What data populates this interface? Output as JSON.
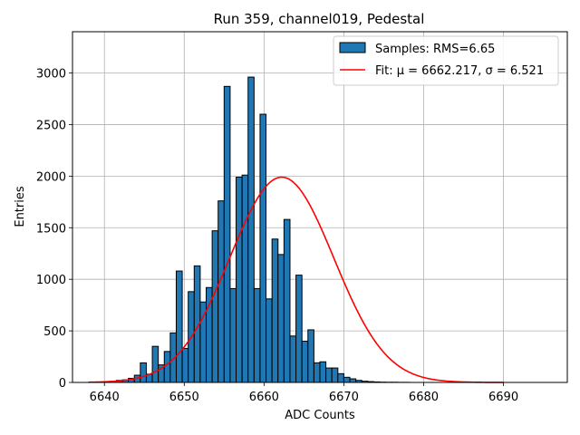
{
  "chart_data": {
    "type": "bar",
    "title": "Run 359, channel019, Pedestal",
    "xlabel": "ADC Counts",
    "ylabel": "Entries",
    "xlim": [
      6636,
      6698
    ],
    "ylim": [
      0,
      3400
    ],
    "xticks": [
      6640,
      6650,
      6660,
      6670,
      6680,
      6690
    ],
    "yticks": [
      0,
      500,
      1000,
      1500,
      2000,
      2500,
      3000
    ],
    "grid": true,
    "legend_position": "top-right",
    "colors": {
      "bar_fill": "#1f77b4",
      "bar_edge": "#000000",
      "fit_line": "#ff0000",
      "grid": "#b0b0b0"
    },
    "series": [
      {
        "name": "Samples: RMS=6.65",
        "kind": "histogram",
        "bin_width": 0.75,
        "bin_starts": [
          6640.0,
          6640.75,
          6641.5,
          6642.25,
          6643.0,
          6643.75,
          6644.5,
          6645.25,
          6646.0,
          6646.75,
          6647.5,
          6648.25,
          6649.0,
          6649.75,
          6650.5,
          6651.25,
          6652.0,
          6652.75,
          6653.5,
          6654.25,
          6655.0,
          6655.75,
          6656.5,
          6657.25,
          6658.0,
          6658.75,
          6659.5,
          6660.25,
          6661.0,
          6661.75,
          6662.5,
          6663.25,
          6664.0,
          6664.75,
          6665.5,
          6666.25,
          6667.0,
          6667.75,
          6668.5,
          6669.25,
          6670.0,
          6670.75,
          6671.5,
          6672.25,
          6673.0,
          6673.75,
          6674.5,
          6675.25,
          6676.0,
          6676.75,
          6677.5,
          6678.25,
          6679.0,
          6679.75,
          6680.5,
          6681.25,
          6682.0,
          6682.75,
          6683.5,
          6684.25,
          6685.0
        ],
        "values": [
          5,
          10,
          20,
          25,
          40,
          70,
          190,
          80,
          350,
          170,
          300,
          480,
          1080,
          330,
          880,
          1130,
          780,
          920,
          1470,
          1760,
          2870,
          910,
          1990,
          2010,
          2960,
          910,
          2600,
          810,
          1390,
          1240,
          1580,
          450,
          1040,
          400,
          510,
          190,
          200,
          140,
          140,
          85,
          50,
          35,
          20,
          12,
          8,
          5,
          3,
          2,
          2,
          1,
          1,
          0,
          0,
          0,
          0,
          0,
          0,
          0,
          0,
          0,
          0
        ]
      },
      {
        "name": "Fit: μ = 6662.217, σ = 6.521",
        "kind": "gaussian_fit",
        "mu": 6662.217,
        "sigma": 6.521,
        "amplitude": 1990,
        "x_range": [
          6638,
          6690
        ]
      }
    ]
  }
}
